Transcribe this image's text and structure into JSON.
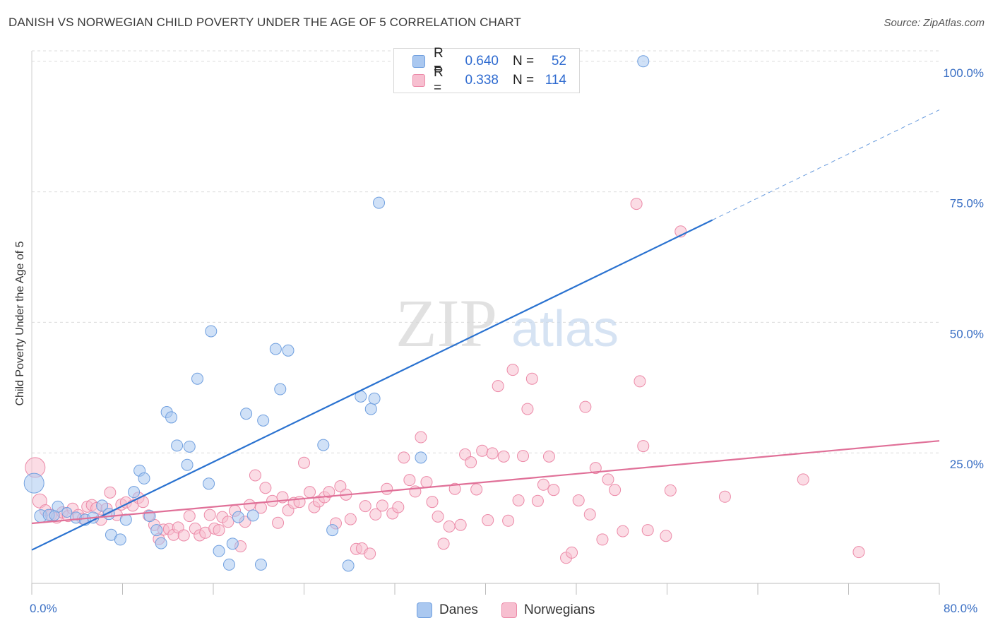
{
  "header": {
    "title": "DANISH VS NORWEGIAN CHILD POVERTY UNDER THE AGE OF 5 CORRELATION CHART",
    "source": "Source: ZipAtlas.com"
  },
  "legend": {
    "rows": [
      {
        "r_label": "R =",
        "r_value": "0.640",
        "n_label": "N =",
        "n_value": "52"
      },
      {
        "r_label": "R =",
        "r_value": "0.338",
        "n_label": "N =",
        "n_value": "114"
      }
    ],
    "series": [
      "Danes",
      "Norwegians"
    ]
  },
  "watermark": {
    "zip": "ZIP",
    "atlas": "atlas"
  },
  "colors": {
    "danes_fill": "#aac8f0",
    "danes_stroke": "#6f9fdf",
    "danes_line": "#2a72d0",
    "norwegians_fill": "#f7bfd0",
    "norwegians_stroke": "#ec8aa8",
    "norwegians_line": "#e07098",
    "accent_text": "#3a6fc4"
  },
  "chart_data": {
    "type": "scatter",
    "title": "DANISH VS NORWEGIAN CHILD POVERTY UNDER THE AGE OF 5 CORRELATION CHART",
    "xlabel": "",
    "ylabel": "Child Poverty Under the Age of 5",
    "xlim": [
      0,
      80
    ],
    "ylim": [
      0,
      102
    ],
    "x_tick_labels": [
      "0.0%",
      "80.0%"
    ],
    "y_ticks": [
      25,
      50,
      75,
      100
    ],
    "y_tick_labels": [
      "25.0%",
      "50.0%",
      "75.0%",
      "100.0%"
    ],
    "grid": true,
    "legend_position": "top-center",
    "series": [
      {
        "name": "Danes",
        "r": 0.64,
        "n": 52,
        "trend": {
          "x0": 0,
          "y0": 6.4,
          "x1": 60,
          "y1": 69.6,
          "dashed_to_x": 80,
          "dashed_to_y": 90.7
        },
        "points": [
          [
            0.2,
            19.2,
            14
          ],
          [
            0.8,
            12.9,
            9
          ],
          [
            1.5,
            13.1,
            8
          ],
          [
            2.3,
            14.7,
            8
          ],
          [
            3.1,
            13.6,
            7
          ],
          [
            2.0,
            13.0,
            7
          ],
          [
            3.9,
            12.6,
            8
          ],
          [
            4.7,
            12.2,
            8
          ],
          [
            5.4,
            12.6,
            8
          ],
          [
            6.2,
            14.9,
            8
          ],
          [
            6.8,
            13.3,
            8
          ],
          [
            8.3,
            12.2,
            8
          ],
          [
            7.0,
            9.3,
            8
          ],
          [
            7.8,
            8.4,
            8
          ],
          [
            9.5,
            21.6,
            8
          ],
          [
            9.0,
            17.5,
            8
          ],
          [
            9.9,
            20.1,
            8
          ],
          [
            10.4,
            12.9,
            8
          ],
          [
            11.0,
            10.2,
            8
          ],
          [
            11.4,
            7.7,
            8
          ],
          [
            11.9,
            32.8,
            8
          ],
          [
            12.3,
            31.8,
            8
          ],
          [
            12.8,
            26.4,
            8
          ],
          [
            13.7,
            22.7,
            8
          ],
          [
            13.9,
            26.2,
            8
          ],
          [
            14.6,
            39.2,
            8
          ],
          [
            15.6,
            19.1,
            8
          ],
          [
            15.8,
            48.3,
            8
          ],
          [
            16.5,
            6.2,
            8
          ],
          [
            17.4,
            3.6,
            8
          ],
          [
            17.7,
            7.6,
            8
          ],
          [
            18.2,
            12.7,
            8
          ],
          [
            18.9,
            32.5,
            8
          ],
          [
            19.5,
            13.0,
            8
          ],
          [
            20.2,
            3.6,
            8
          ],
          [
            20.4,
            31.2,
            8
          ],
          [
            21.5,
            44.9,
            8
          ],
          [
            21.9,
            37.2,
            8
          ],
          [
            22.6,
            44.6,
            8
          ],
          [
            25.7,
            26.5,
            8
          ],
          [
            26.5,
            10.2,
            8
          ],
          [
            27.9,
            3.4,
            8
          ],
          [
            29.0,
            35.8,
            8
          ],
          [
            29.9,
            33.4,
            8
          ],
          [
            30.2,
            35.4,
            8
          ],
          [
            30.6,
            72.9,
            8
          ],
          [
            34.3,
            24.1,
            8
          ],
          [
            53.9,
            100.0,
            8
          ]
        ]
      },
      {
        "name": "Norwegians",
        "r": 0.338,
        "n": 114,
        "trend": {
          "x0": 0,
          "y0": 11.5,
          "x1": 80,
          "y1": 27.3
        },
        "points": [
          [
            0.3,
            22.2,
            14
          ],
          [
            0.7,
            15.8,
            10
          ],
          [
            1.2,
            14.0,
            8
          ],
          [
            1.7,
            13.1,
            8
          ],
          [
            2.2,
            12.6,
            8
          ],
          [
            2.7,
            13.6,
            8
          ],
          [
            3.2,
            12.9,
            8
          ],
          [
            3.6,
            14.3,
            8
          ],
          [
            4.1,
            13.1,
            8
          ],
          [
            4.5,
            12.4,
            8
          ],
          [
            4.9,
            14.7,
            8
          ],
          [
            5.3,
            15.0,
            8
          ],
          [
            5.7,
            14.4,
            8
          ],
          [
            6.1,
            12.2,
            8
          ],
          [
            6.6,
            14.3,
            8
          ],
          [
            6.9,
            17.4,
            8
          ],
          [
            7.5,
            13.1,
            8
          ],
          [
            7.9,
            15.1,
            8
          ],
          [
            8.3,
            15.5,
            8
          ],
          [
            8.9,
            14.9,
            8
          ],
          [
            9.4,
            16.4,
            8
          ],
          [
            9.8,
            15.6,
            8
          ],
          [
            10.3,
            13.0,
            8
          ],
          [
            10.8,
            11.2,
            8
          ],
          [
            11.2,
            8.5,
            8
          ],
          [
            11.6,
            10.3,
            8
          ],
          [
            12.1,
            10.4,
            8
          ],
          [
            12.5,
            9.3,
            8
          ],
          [
            12.9,
            10.7,
            8
          ],
          [
            13.4,
            9.2,
            8
          ],
          [
            13.9,
            12.9,
            8
          ],
          [
            14.4,
            10.5,
            8
          ],
          [
            14.8,
            9.2,
            8
          ],
          [
            15.3,
            9.7,
            8
          ],
          [
            15.7,
            13.1,
            8
          ],
          [
            16.1,
            10.5,
            8
          ],
          [
            16.5,
            10.2,
            8
          ],
          [
            16.8,
            12.7,
            8
          ],
          [
            17.3,
            11.8,
            8
          ],
          [
            17.9,
            13.9,
            8
          ],
          [
            18.4,
            7.1,
            8
          ],
          [
            18.8,
            11.8,
            8
          ],
          [
            19.2,
            15.0,
            8
          ],
          [
            19.7,
            20.7,
            8
          ],
          [
            20.2,
            14.5,
            8
          ],
          [
            20.6,
            18.3,
            8
          ],
          [
            21.2,
            15.8,
            8
          ],
          [
            21.7,
            11.6,
            8
          ],
          [
            22.1,
            16.5,
            8
          ],
          [
            22.6,
            14.0,
            8
          ],
          [
            23.1,
            15.4,
            8
          ],
          [
            23.6,
            15.6,
            8
          ],
          [
            24.0,
            23.1,
            8
          ],
          [
            24.5,
            17.5,
            8
          ],
          [
            24.9,
            14.6,
            8
          ],
          [
            25.3,
            15.7,
            8
          ],
          [
            25.8,
            16.5,
            8
          ],
          [
            26.2,
            17.5,
            8
          ],
          [
            26.8,
            11.5,
            8
          ],
          [
            27.2,
            18.6,
            8
          ],
          [
            27.7,
            17.0,
            8
          ],
          [
            28.1,
            12.3,
            8
          ],
          [
            28.6,
            6.6,
            8
          ],
          [
            29.1,
            6.7,
            8
          ],
          [
            29.4,
            14.8,
            8
          ],
          [
            29.8,
            5.7,
            8
          ],
          [
            30.3,
            13.2,
            8
          ],
          [
            30.9,
            14.9,
            8
          ],
          [
            31.3,
            18.1,
            8
          ],
          [
            31.8,
            13.4,
            8
          ],
          [
            32.3,
            14.6,
            8
          ],
          [
            32.8,
            24.1,
            8
          ],
          [
            33.3,
            19.8,
            8
          ],
          [
            33.8,
            17.6,
            8
          ],
          [
            34.3,
            28.0,
            8
          ],
          [
            34.8,
            19.4,
            8
          ],
          [
            35.3,
            15.6,
            8
          ],
          [
            35.8,
            12.8,
            8
          ],
          [
            36.3,
            7.6,
            8
          ],
          [
            36.8,
            10.9,
            8
          ],
          [
            37.3,
            18.1,
            8
          ],
          [
            37.8,
            11.2,
            8
          ],
          [
            38.2,
            24.7,
            8
          ],
          [
            38.7,
            23.2,
            8
          ],
          [
            39.2,
            18.0,
            8
          ],
          [
            39.7,
            25.4,
            8
          ],
          [
            40.2,
            12.1,
            8
          ],
          [
            40.6,
            24.9,
            8
          ],
          [
            41.1,
            37.8,
            8
          ],
          [
            41.6,
            24.3,
            8
          ],
          [
            42.0,
            12.0,
            8
          ],
          [
            42.4,
            40.9,
            8
          ],
          [
            42.9,
            15.9,
            8
          ],
          [
            43.3,
            24.4,
            8
          ],
          [
            43.7,
            33.4,
            8
          ],
          [
            44.1,
            39.2,
            8
          ],
          [
            44.6,
            15.8,
            8
          ],
          [
            45.1,
            18.9,
            8
          ],
          [
            45.6,
            24.3,
            8
          ],
          [
            46.0,
            17.9,
            8
          ],
          [
            47.1,
            4.9,
            8
          ],
          [
            47.6,
            5.9,
            8
          ],
          [
            48.2,
            15.9,
            8
          ],
          [
            48.8,
            33.8,
            8
          ],
          [
            49.2,
            13.2,
            8
          ],
          [
            49.7,
            22.1,
            8
          ],
          [
            50.3,
            8.4,
            8
          ],
          [
            50.8,
            19.9,
            8
          ],
          [
            51.4,
            17.9,
            8
          ],
          [
            52.1,
            10.0,
            8
          ],
          [
            53.3,
            72.7,
            8
          ],
          [
            53.6,
            38.7,
            8
          ],
          [
            53.9,
            26.3,
            8
          ],
          [
            54.3,
            10.2,
            8
          ],
          [
            55.9,
            9.1,
            8
          ],
          [
            56.3,
            17.8,
            8
          ],
          [
            57.2,
            67.4,
            8
          ],
          [
            61.1,
            16.6,
            8
          ],
          [
            68.0,
            19.9,
            8
          ],
          [
            72.9,
            6.0,
            8
          ]
        ]
      }
    ]
  }
}
